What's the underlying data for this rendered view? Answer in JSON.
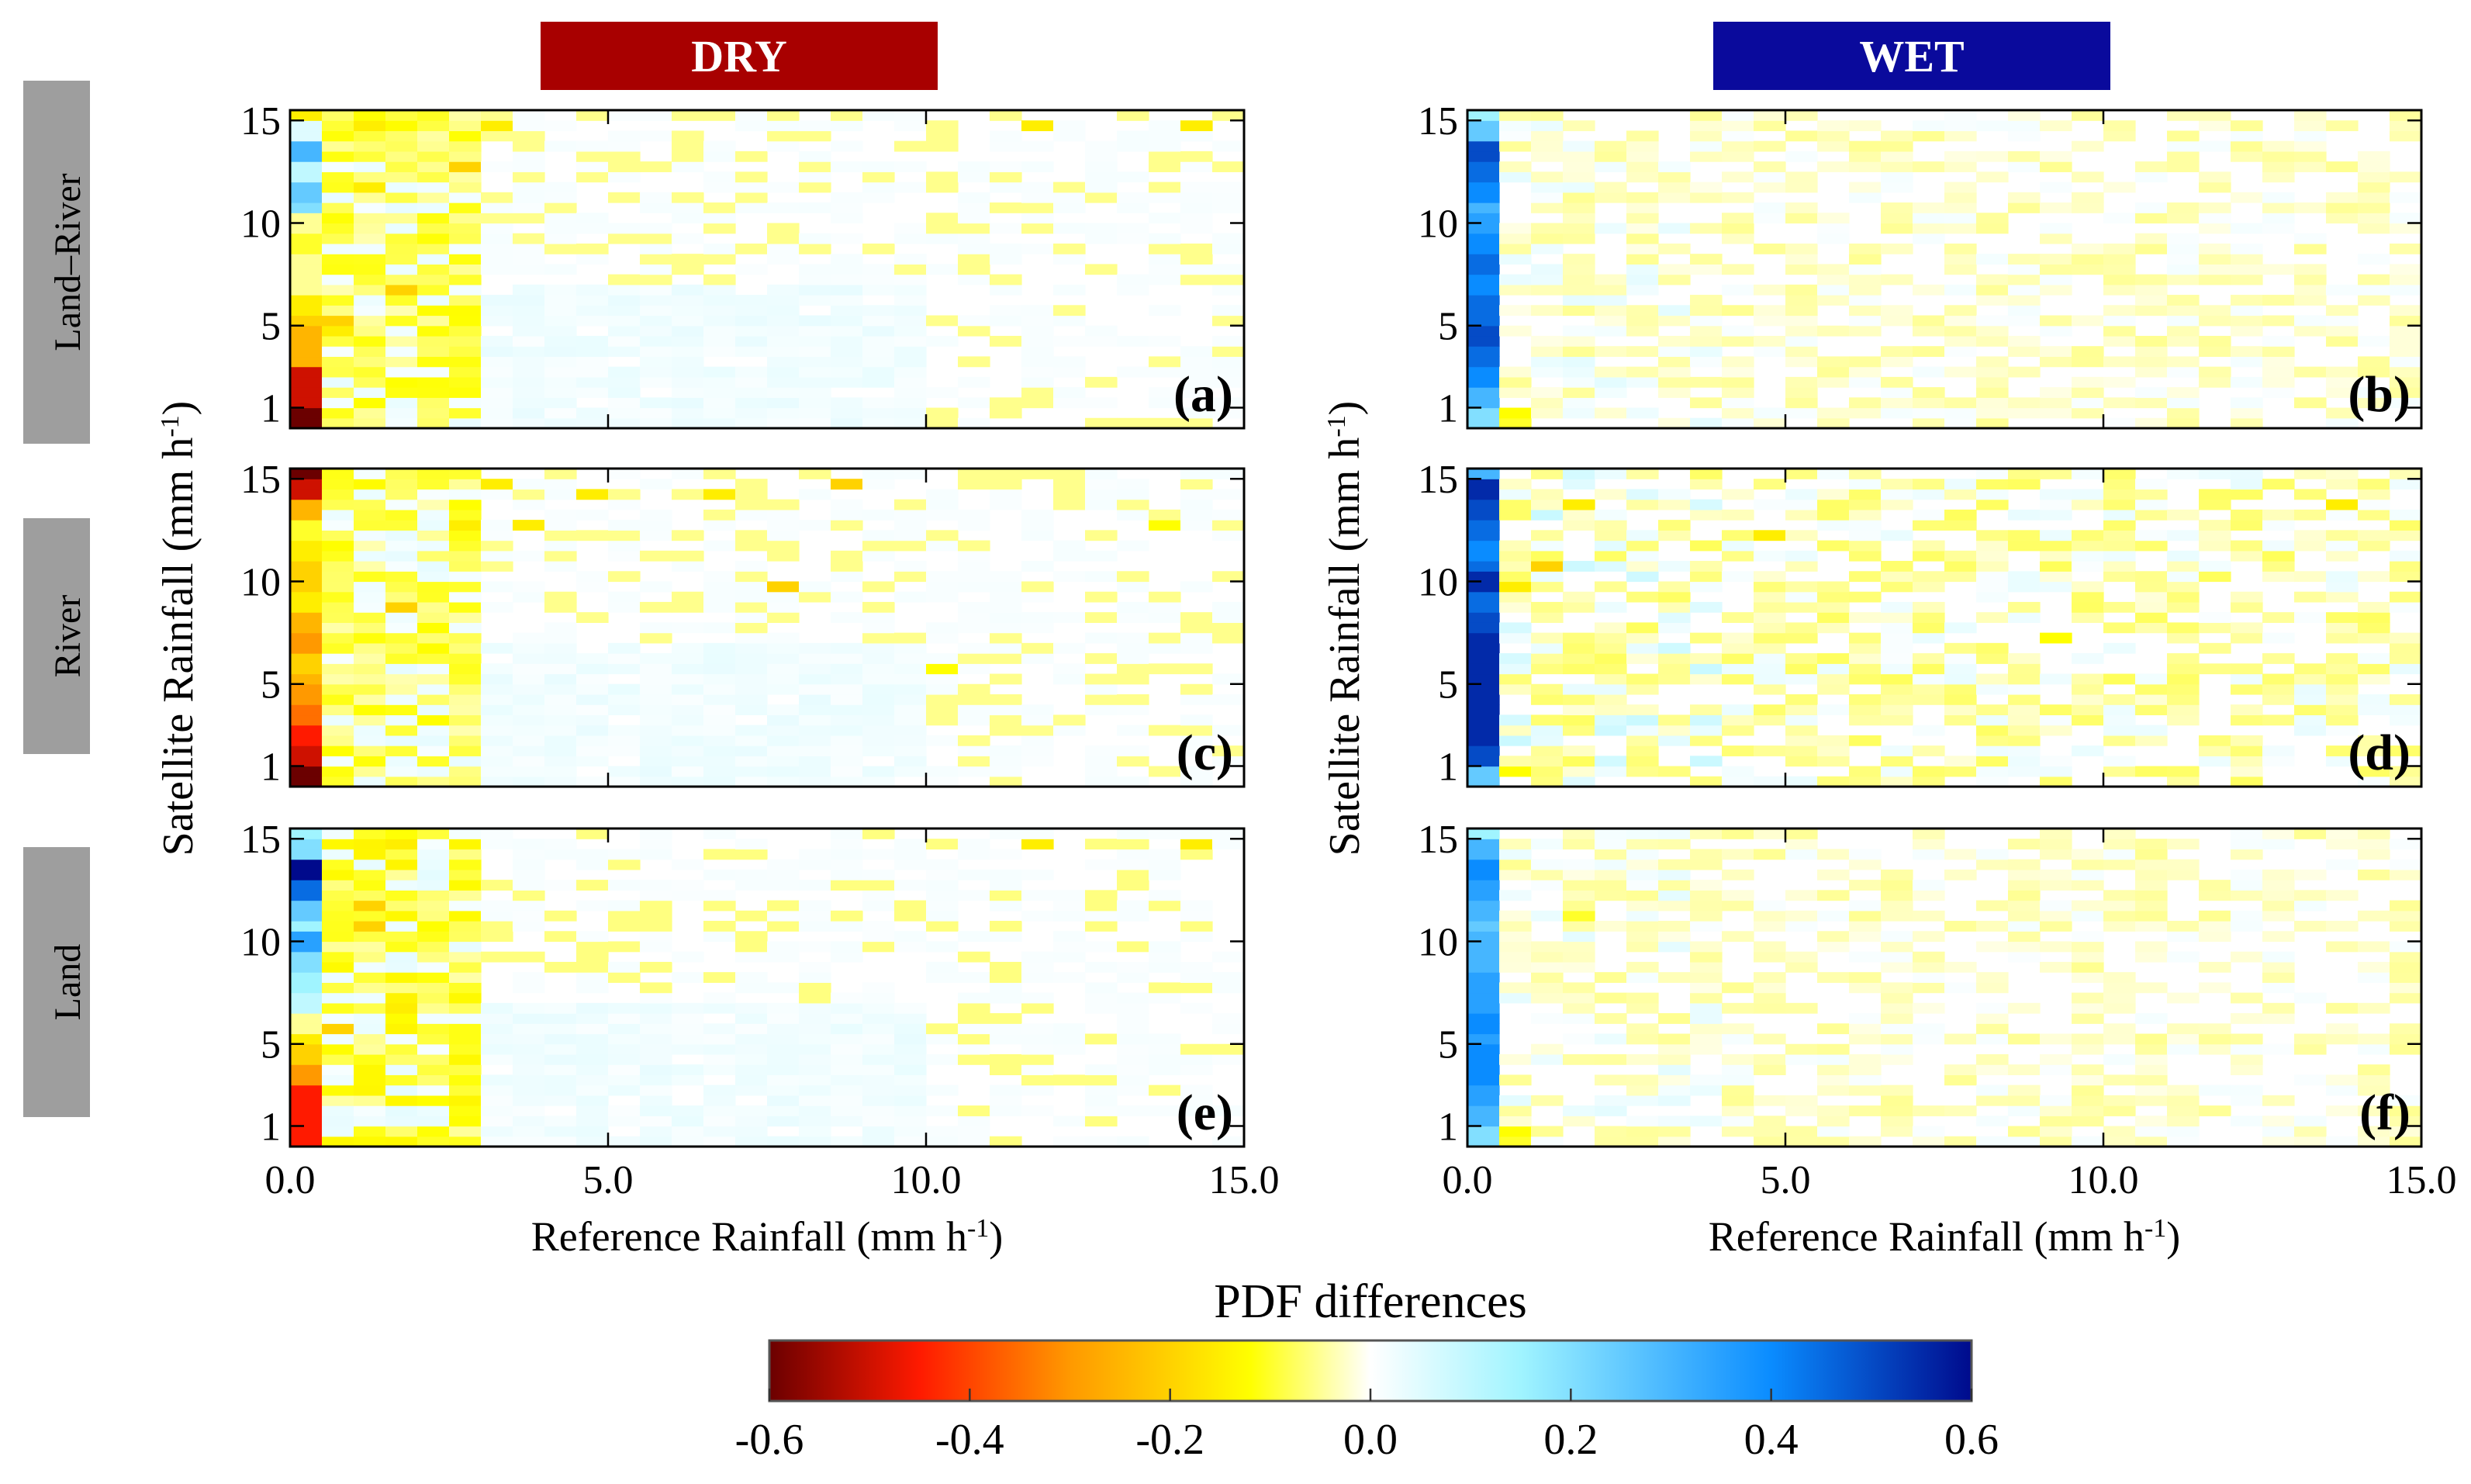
{
  "chart_data": {
    "type": "heatmap",
    "colorbar": {
      "title": "PDF differences",
      "range": [
        -0.6,
        0.6
      ],
      "ticks": [
        "-0.6",
        "-0.4",
        "-0.2",
        "0.0",
        "0.2",
        "0.4",
        "0.6"
      ],
      "stops": [
        {
          "v": -0.6,
          "c": "#6b0000"
        },
        {
          "v": -0.45,
          "c": "#ff1a00"
        },
        {
          "v": -0.3,
          "c": "#ff9900"
        },
        {
          "v": -0.12,
          "c": "#ffff00"
        },
        {
          "v": 0.0,
          "c": "#ffffff"
        },
        {
          "v": 0.15,
          "c": "#a0f4ff"
        },
        {
          "v": 0.4,
          "c": "#0a8cff"
        },
        {
          "v": 0.6,
          "c": "#000a8c"
        }
      ]
    },
    "columns": [
      {
        "key": "dry",
        "label": "DRY",
        "color": "#a80000"
      },
      {
        "key": "wet",
        "label": "WET",
        "color": "#0a0a9c"
      }
    ],
    "rows": [
      {
        "key": "land_river",
        "label": "Land–River"
      },
      {
        "key": "river",
        "label": "River"
      },
      {
        "key": "land",
        "label": "Land"
      }
    ],
    "x_axis": {
      "label": "Reference Rainfall (mm h",
      "label_sup": "-1",
      "label_end": ")",
      "range": [
        0,
        15
      ],
      "ticks": [
        {
          "v": 0,
          "t": "0.0"
        },
        {
          "v": 5,
          "t": "5.0"
        },
        {
          "v": 10,
          "t": "10.0"
        },
        {
          "v": 15,
          "t": "15.0"
        }
      ]
    },
    "y_axis": {
      "label": "Satellite Rainfall (mm h",
      "label_sup": "-1",
      "label_end": ")",
      "range": [
        0,
        15.5
      ],
      "ticks": [
        {
          "v": 1,
          "t": "1"
        },
        {
          "v": 5,
          "t": "5"
        },
        {
          "v": 10,
          "t": "10"
        },
        {
          "v": 15,
          "t": "15"
        }
      ]
    },
    "panels": [
      {
        "id": "a",
        "label": "(a)",
        "row": 0,
        "col": 0,
        "first_column": [
          -0.6,
          -0.5,
          -0.5,
          -0.25,
          -0.25,
          -0.2,
          -0.15,
          -0.05,
          -0.05,
          -0.1,
          -0.05,
          0.2,
          0.25,
          0.1,
          0.3,
          0.05,
          -0.15
        ],
        "hotspots": [
          {
            "x": 1.25,
            "y": 14.75,
            "v": -0.15
          },
          {
            "x": 3.25,
            "y": 14.75,
            "v": -0.15
          },
          {
            "x": 11.75,
            "y": 14.75,
            "v": -0.15
          },
          {
            "x": 14.25,
            "y": 14.75,
            "v": -0.15
          },
          {
            "x": 2.75,
            "y": 12.75,
            "v": -0.2
          },
          {
            "x": 1.25,
            "y": 11.75,
            "v": -0.15
          },
          {
            "x": 1.75,
            "y": 6.75,
            "v": -0.2
          },
          {
            "x": 0.75,
            "y": 5.25,
            "v": -0.2
          },
          {
            "x": 0.75,
            "y": 4.75,
            "v": -0.15
          }
        ],
        "hot_cols": 6,
        "warm_strength": 0.09,
        "cool_strength": 0.05
      },
      {
        "id": "b",
        "label": "(b)",
        "row": 0,
        "col": 1,
        "first_column": [
          0.2,
          0.3,
          0.4,
          0.45,
          0.5,
          0.45,
          0.45,
          0.4,
          0.45,
          0.4,
          0.35,
          0.3,
          0.4,
          0.45,
          0.5,
          0.25,
          0.15
        ],
        "hotspots": [
          {
            "x": 0.75,
            "y": 0.75,
            "v": -0.12
          },
          {
            "x": 0.75,
            "y": 0.25,
            "v": -0.1
          }
        ],
        "hot_cols": 2,
        "warm_strength": 0.04,
        "cool_strength": 0.03
      },
      {
        "id": "c",
        "label": "(c)",
        "row": 1,
        "col": 0,
        "first_column": [
          -0.6,
          -0.5,
          -0.45,
          -0.35,
          -0.3,
          -0.25,
          -0.2,
          -0.3,
          -0.25,
          -0.15,
          -0.2,
          -0.2,
          -0.15,
          -0.1,
          -0.25,
          -0.5,
          -0.6
        ],
        "hotspots": [
          {
            "x": 3.25,
            "y": 14.75,
            "v": -0.15
          },
          {
            "x": 8.75,
            "y": 14.75,
            "v": -0.2
          },
          {
            "x": 4.75,
            "y": 14.25,
            "v": -0.15
          },
          {
            "x": 6.75,
            "y": 14.25,
            "v": -0.15
          },
          {
            "x": 2.75,
            "y": 12.75,
            "v": -0.15
          },
          {
            "x": 3.75,
            "y": 12.75,
            "v": -0.15
          },
          {
            "x": 13.75,
            "y": 12.75,
            "v": -0.12
          },
          {
            "x": 7.75,
            "y": 9.75,
            "v": -0.2
          },
          {
            "x": 1.75,
            "y": 8.75,
            "v": -0.2
          },
          {
            "x": 10.25,
            "y": 5.75,
            "v": -0.12
          }
        ],
        "hot_cols": 6,
        "warm_strength": 0.09,
        "cool_strength": 0.05
      },
      {
        "id": "d",
        "label": "(d)",
        "row": 1,
        "col": 1,
        "first_column": [
          0.25,
          0.5,
          0.55,
          0.55,
          0.55,
          0.55,
          0.55,
          0.55,
          0.5,
          0.45,
          0.55,
          0.45,
          0.4,
          0.45,
          0.5,
          0.55,
          0.3
        ],
        "hotspots": [
          {
            "x": 1.25,
            "y": 10.75,
            "v": -0.2
          },
          {
            "x": 0.75,
            "y": 9.75,
            "v": -0.15
          },
          {
            "x": 1.75,
            "y": 13.75,
            "v": -0.15
          },
          {
            "x": 4.75,
            "y": 12.25,
            "v": -0.15
          },
          {
            "x": 13.75,
            "y": 13.75,
            "v": -0.15
          },
          {
            "x": 9.25,
            "y": 7.25,
            "v": -0.12
          },
          {
            "x": 0.75,
            "y": 0.75,
            "v": -0.12
          }
        ],
        "hot_cols": 2,
        "warm_strength": 0.06,
        "cool_strength": 0.06
      },
      {
        "id": "e",
        "label": "(e)",
        "row": 2,
        "col": 0,
        "first_column": [
          -0.45,
          -0.45,
          -0.45,
          -0.3,
          -0.2,
          -0.15,
          -0.05,
          0.1,
          0.15,
          0.2,
          0.35,
          0.15,
          0.25,
          0.45,
          0.6,
          0.2,
          0.15
        ],
        "hotspots": [
          {
            "x": 1.75,
            "y": 14.75,
            "v": -0.15
          },
          {
            "x": 11.75,
            "y": 14.75,
            "v": -0.15
          },
          {
            "x": 14.25,
            "y": 14.75,
            "v": -0.15
          },
          {
            "x": 1.25,
            "y": 11.75,
            "v": -0.2
          },
          {
            "x": 1.25,
            "y": 10.75,
            "v": -0.2
          },
          {
            "x": 1.75,
            "y": 6.75,
            "v": -0.15
          },
          {
            "x": 0.75,
            "y": 5.75,
            "v": -0.2
          }
        ],
        "hot_cols": 6,
        "warm_strength": 0.1,
        "cool_strength": 0.05
      },
      {
        "id": "f",
        "label": "(f)",
        "row": 2,
        "col": 1,
        "first_column": [
          0.2,
          0.3,
          0.35,
          0.4,
          0.4,
          0.35,
          0.4,
          0.35,
          0.35,
          0.3,
          0.3,
          0.25,
          0.3,
          0.35,
          0.4,
          0.3,
          0.15
        ],
        "hotspots": [
          {
            "x": 0.75,
            "y": 0.75,
            "v": -0.12
          },
          {
            "x": 0.75,
            "y": 0.25,
            "v": -0.1
          },
          {
            "x": 1.75,
            "y": 11.25,
            "v": -0.1
          }
        ],
        "hot_cols": 2,
        "warm_strength": 0.04,
        "cool_strength": 0.03
      }
    ]
  }
}
